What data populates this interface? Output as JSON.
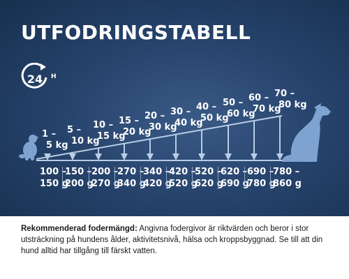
{
  "title": "UTFODRINGSTABELL",
  "badge": {
    "number": "24",
    "unit": "H"
  },
  "weights": [
    {
      "top": "1 –",
      "bottom": "5 kg"
    },
    {
      "top": "5 –",
      "bottom": "10 kg"
    },
    {
      "top": "10 –",
      "bottom": "15 kg"
    },
    {
      "top": "15 –",
      "bottom": "20 kg"
    },
    {
      "top": "20 –",
      "bottom": "30 kg"
    },
    {
      "top": "30 –",
      "bottom": "40 kg"
    },
    {
      "top": "40 –",
      "bottom": "50 kg"
    },
    {
      "top": "50 –",
      "bottom": "60 kg"
    },
    {
      "top": "60 –",
      "bottom": "70 kg"
    },
    {
      "top": "70 –",
      "bottom": "80 kg"
    }
  ],
  "grams": [
    {
      "top": "100 –",
      "bottom": "150 g"
    },
    {
      "top": "150 –",
      "bottom": "200 g"
    },
    {
      "top": "200 –",
      "bottom": "270 g"
    },
    {
      "top": "270 –",
      "bottom": "340 g"
    },
    {
      "top": "340 –",
      "bottom": "420 g"
    },
    {
      "top": "420 –",
      "bottom": "520 g"
    },
    {
      "top": "520 –",
      "bottom": "620 g"
    },
    {
      "top": "620 –",
      "bottom": "690 g"
    },
    {
      "top": "690 –",
      "bottom": "780 g"
    },
    {
      "top": "780 –",
      "bottom": "860 g"
    }
  ],
  "footer": {
    "label": "Rekommenderad fodermängd:",
    "text": " Angivna fodergivor är riktvärden och beror i stor utsträckning på hundens ålder, aktivitetsnivå, hälsa och kroppsbyggnad. Se till att din hund alltid har tillgång till färskt vatten."
  },
  "colors": {
    "background": "#27446d",
    "arrow": "#b9cde6",
    "dog": "#7fa3d0",
    "text": "#ffffff"
  }
}
